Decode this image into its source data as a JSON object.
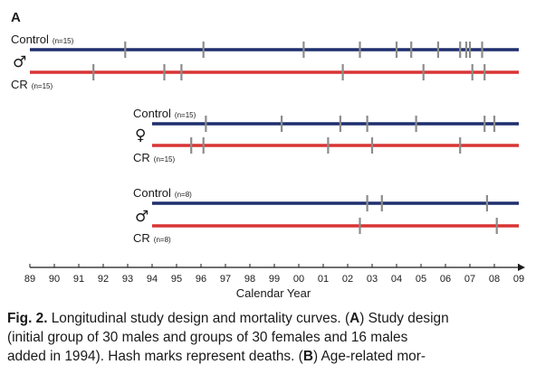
{
  "panel_letter": "A",
  "colors": {
    "control": "#1e2f6e",
    "cr": "#d93434",
    "hash": "#8c8c8c",
    "axis": "#1a1a1a"
  },
  "axis": {
    "title": "Calendar Year",
    "ticks": [
      "89",
      "90",
      "91",
      "92",
      "93",
      "94",
      "95",
      "96",
      "97",
      "98",
      "99",
      "00",
      "01",
      "02",
      "03",
      "04",
      "05",
      "06",
      "07",
      "08",
      "09"
    ]
  },
  "groups": [
    {
      "symbol": "♂",
      "start": 0,
      "control": {
        "label": "Control",
        "n": "(n=15)",
        "deaths": [
          3.9,
          7.1,
          11.2,
          13.5,
          15.0,
          15.6,
          16.7,
          17.6,
          17.85,
          18.0,
          18.5
        ]
      },
      "cr": {
        "label": "CR",
        "n": "(n=15)",
        "deaths": [
          2.6,
          5.5,
          6.2,
          12.8,
          16.1,
          18.1,
          18.6
        ]
      }
    },
    {
      "symbol": "♀",
      "start": 5,
      "control": {
        "label": "Control",
        "n": "(n=15)",
        "deaths": [
          7.2,
          10.3,
          12.7,
          13.8,
          15.8,
          18.6,
          19.0
        ]
      },
      "cr": {
        "label": "CR",
        "n": "(n=15)",
        "deaths": [
          6.6,
          7.1,
          12.2,
          14.0,
          17.6
        ]
      }
    },
    {
      "symbol": "♂",
      "start": 5,
      "control": {
        "label": "Control",
        "n": "(n=8)",
        "deaths": [
          13.8,
          14.4,
          18.7
        ]
      },
      "cr": {
        "label": "CR",
        "n": "(n=8)",
        "deaths": [
          13.5,
          19.1
        ]
      }
    }
  ],
  "caption": {
    "fig_label": "Fig. 2.",
    "part1": " Longitudinal study design and mortality curves. (",
    "bold_a": "A",
    "part2": ") Study design\n(initial group of 30 males and groups of 30 females and 16 males\nadded in 1994). Hash marks represent deaths. (",
    "bold_b": "B",
    "part3": ") Age-related mor-"
  }
}
